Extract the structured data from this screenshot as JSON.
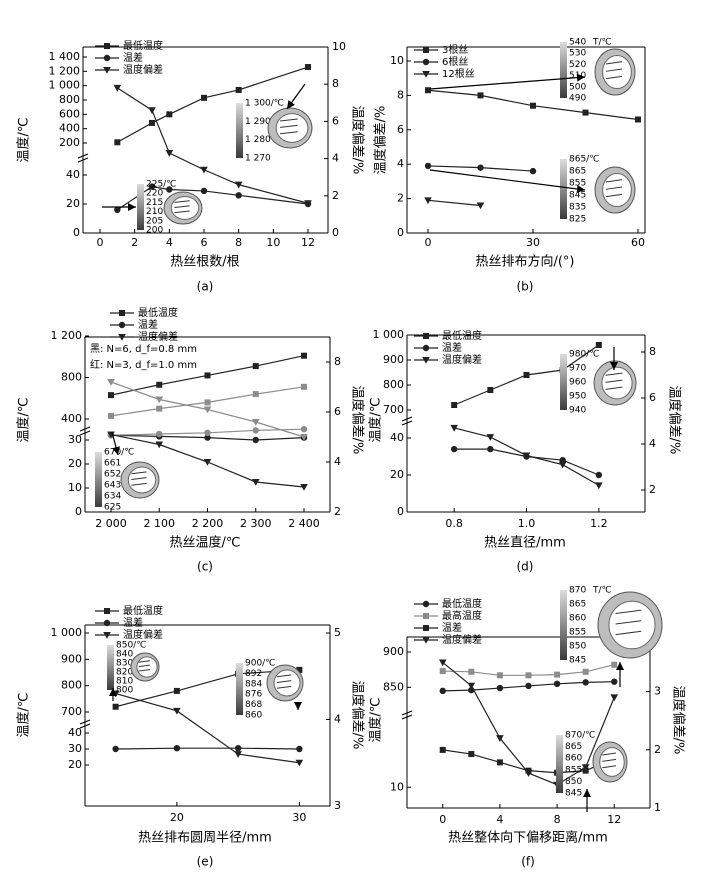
{
  "chart_data": [
    {
      "panel": "(a)",
      "type": "line",
      "xlabel": "热丝根数/根",
      "ylabel_left": "温度/℃",
      "ylabel_right": "温度偏差/%",
      "x_ticks": [
        "0",
        "2",
        "4",
        "6",
        "8",
        "10",
        "12"
      ],
      "y_ticks_top": [
        "200",
        "400",
        "600",
        "800",
        "1 000",
        "1 200",
        "1 400"
      ],
      "y_ticks_bottom": [
        "0",
        "20",
        "40"
      ],
      "y_ticks_right": [
        "0",
        "2",
        "4",
        "6",
        "8",
        "10"
      ],
      "legend": [
        "最低温度",
        "温差",
        "温度偏差"
      ],
      "series": [
        {
          "name": "最低温度",
          "x": [
            1,
            3,
            4,
            6,
            8,
            12
          ],
          "values": [
            210,
            480,
            600,
            830,
            940,
            1260
          ]
        },
        {
          "name": "温差",
          "x": [
            1,
            3,
            4,
            6,
            8,
            12
          ],
          "values": [
            16,
            32,
            30,
            29,
            26,
            20
          ]
        },
        {
          "name": "温度偏差",
          "x": [
            1,
            3,
            4,
            6,
            8,
            12
          ],
          "values": [
            7.8,
            6.6,
            4.3,
            3.4,
            2.6,
            1.6
          ]
        }
      ],
      "colorbars": [
        {
          "ticks": [
            "1 300/℃",
            "1 290",
            "1 280",
            "1 270"
          ]
        },
        {
          "ticks": [
            "225/℃",
            "220",
            "215",
            "210",
            "205",
            "200"
          ]
        }
      ]
    },
    {
      "panel": "(b)",
      "type": "line",
      "xlabel": "热丝排布方向/(°)",
      "ylabel_left": "温度偏差/%",
      "x_ticks": [
        "0",
        "30",
        "60"
      ],
      "y_ticks": [
        "0",
        "2",
        "4",
        "6",
        "8",
        "10"
      ],
      "legend": [
        "3根丝",
        "6根丝",
        "12根丝"
      ],
      "series": [
        {
          "name": "3根丝",
          "x": [
            0,
            15,
            30,
            45,
            60
          ],
          "values": [
            8.3,
            8.0,
            7.4,
            7.0,
            6.6
          ]
        },
        {
          "name": "6根丝",
          "x": [
            0,
            15,
            30
          ],
          "values": [
            3.9,
            3.8,
            3.6
          ]
        },
        {
          "name": "12根丝",
          "x": [
            0,
            15
          ],
          "values": [
            1.9,
            1.6
          ]
        }
      ],
      "colorbars": [
        {
          "ticks": [
            "540",
            "530",
            "520",
            "510",
            "500",
            "490"
          ],
          "unit": "T/℃"
        },
        {
          "ticks": [
            "865/℃",
            "865",
            "855",
            "845",
            "835",
            "825"
          ]
        }
      ]
    },
    {
      "panel": "(c)",
      "type": "line",
      "xlabel": "热丝温度/℃",
      "ylabel_left": "温度/℃",
      "ylabel_right": "温度偏差/%",
      "x_ticks": [
        "2 000",
        "2 100",
        "2 200",
        "2 300",
        "2 400"
      ],
      "y_ticks_top": [
        "400",
        "800",
        "1 200"
      ],
      "y_ticks_bottom": [
        "0",
        "10",
        "20",
        "30"
      ],
      "y_ticks_right": [
        "2",
        "4",
        "6",
        "8"
      ],
      "legend": [
        "最低温度",
        "温差",
        "温度偏差"
      ],
      "notes": [
        "黑: N=6, d_f=0.8 mm",
        "红: N=3, d_f=1.0 mm"
      ],
      "series": [
        {
          "name": "最低温度 (黑)",
          "x": [
            2000,
            2100,
            2200,
            2300,
            2400
          ],
          "values": [
            630,
            730,
            820,
            910,
            1010
          ]
        },
        {
          "name": "最低温度 (红)",
          "x": [
            2000,
            2100,
            2200,
            2300,
            2400
          ],
          "values": [
            430,
            500,
            560,
            640,
            710
          ]
        },
        {
          "name": "温差 (黑)",
          "x": [
            2000,
            2100,
            2200,
            2300,
            2400
          ],
          "values": [
            32,
            31.5,
            31,
            30,
            31
          ]
        },
        {
          "name": "温差 (红)",
          "x": [
            2000,
            2100,
            2200,
            2300,
            2400
          ],
          "values": [
            32,
            32.5,
            33,
            34,
            34.5
          ]
        },
        {
          "name": "温度偏差 (黑)",
          "x": [
            2000,
            2100,
            2200,
            2300,
            2400
          ],
          "values": [
            5.1,
            4.7,
            4.0,
            3.2,
            3.0
          ]
        },
        {
          "name": "温度偏差 (红)",
          "x": [
            2000,
            2100,
            2200,
            2300,
            2400
          ],
          "values": [
            7.2,
            6.5,
            6.1,
            5.6,
            5.0
          ]
        }
      ],
      "colorbars": [
        {
          "ticks": [
            "670/℃",
            "661",
            "652",
            "643",
            "634",
            "625"
          ]
        }
      ]
    },
    {
      "panel": "(d)",
      "type": "line",
      "xlabel": "热丝直径/mm",
      "ylabel_left": "温度/℃",
      "ylabel_right": "温度偏差/%",
      "x_ticks": [
        "0.8",
        "1.0",
        "1.2"
      ],
      "y_ticks_top": [
        "700",
        "800",
        "900",
        "1 000"
      ],
      "y_ticks_bottom": [
        "0",
        "20",
        "40"
      ],
      "y_ticks_right": [
        "2",
        "4",
        "6",
        "8"
      ],
      "legend": [
        "最低温度",
        "温差",
        "温度偏差"
      ],
      "series": [
        {
          "name": "最低温度",
          "x": [
            0.8,
            0.9,
            1.0,
            1.1,
            1.2
          ],
          "values": [
            720,
            780,
            840,
            860,
            960
          ]
        },
        {
          "name": "温差",
          "x": [
            0.8,
            0.9,
            1.0,
            1.1,
            1.2
          ],
          "values": [
            34,
            34,
            30,
            28,
            20
          ]
        },
        {
          "name": "温度偏差",
          "x": [
            0.8,
            0.9,
            1.0,
            1.1,
            1.2
          ],
          "values": [
            4.7,
            4.3,
            3.5,
            3.1,
            2.2
          ]
        }
      ],
      "colorbars": [
        {
          "ticks": [
            "980/℃",
            "970",
            "960",
            "950",
            "940"
          ]
        }
      ]
    },
    {
      "panel": "(e)",
      "type": "line",
      "xlabel": "热丝排布圆周半径/mm",
      "ylabel_left": "温度/℃",
      "ylabel_right": "温度偏差/%",
      "x_ticks": [
        "20",
        "30"
      ],
      "y_ticks_top": [
        "700",
        "800",
        "900",
        "1 000"
      ],
      "y_ticks_bottom": [
        "20",
        "30",
        "40"
      ],
      "y_ticks_right": [
        "3",
        "4",
        "5"
      ],
      "legend": [
        "最低温度",
        "温差",
        "温度偏差"
      ],
      "series": [
        {
          "name": "最低温度",
          "x": [
            15,
            20,
            25,
            30
          ],
          "values": [
            720,
            780,
            845,
            860
          ]
        },
        {
          "name": "温差",
          "x": [
            15,
            20,
            25,
            30
          ],
          "values": [
            30,
            30.5,
            30.5,
            30
          ]
        },
        {
          "name": "温度偏差",
          "x": [
            15,
            20,
            25,
            30
          ],
          "values": [
            4.3,
            4.1,
            3.6,
            3.5
          ]
        }
      ],
      "colorbars": [
        {
          "ticks": [
            "850/℃",
            "840",
            "830",
            "820",
            "810",
            "800"
          ]
        },
        {
          "ticks": [
            "900/℃",
            "892",
            "884",
            "876",
            "868",
            "860"
          ]
        }
      ]
    },
    {
      "panel": "(f)",
      "type": "line",
      "xlabel": "热丝整体向下偏移距离/mm",
      "ylabel_left": "温度/℃",
      "ylabel_right": "温度偏差/%",
      "x_ticks": [
        "0",
        "4",
        "8",
        "12"
      ],
      "y_ticks_top": [
        "850",
        "900"
      ],
      "y_ticks_bottom": [
        "10"
      ],
      "y_ticks_right": [
        "1",
        "2",
        "3"
      ],
      "legend": [
        "最低温度",
        "最高温度",
        "温差",
        "温度偏差"
      ],
      "series": [
        {
          "name": "最低温度",
          "x": [
            0,
            2,
            4,
            6,
            8,
            10,
            12
          ],
          "values": [
            845,
            846,
            849,
            852,
            855,
            857,
            858
          ]
        },
        {
          "name": "最高温度",
          "x": [
            0,
            2,
            4,
            6,
            8,
            10,
            12
          ],
          "values": [
            873,
            872,
            867,
            867,
            868,
            872,
            882
          ]
        },
        {
          "name": "温差",
          "x": [
            0,
            2,
            4,
            6,
            8,
            10,
            12
          ],
          "values": [
            28,
            26,
            22,
            18,
            17,
            18,
            24
          ]
        },
        {
          "name": "温度偏差",
          "x": [
            0,
            2,
            4,
            6,
            8,
            10,
            12
          ],
          "values": [
            3.5,
            3.1,
            2.2,
            1.6,
            1.4,
            1.7,
            2.9
          ]
        }
      ],
      "colorbars": [
        {
          "ticks": [
            "870",
            "865",
            "860",
            "855",
            "850",
            "845"
          ],
          "unit": "T/℃"
        },
        {
          "ticks": [
            "870/℃",
            "865",
            "860",
            "855",
            "850",
            "845"
          ]
        }
      ]
    }
  ]
}
